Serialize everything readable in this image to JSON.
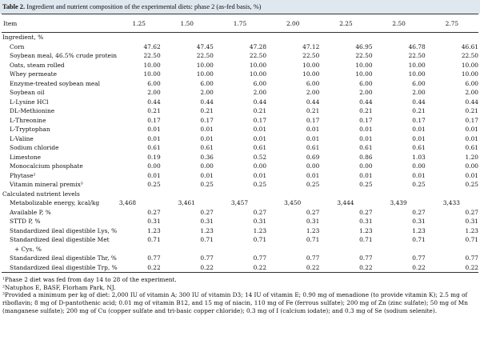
{
  "caption": {
    "label": "Table 2.",
    "text": "Ingredient and nutrient composition of the experimental diets: phase 2 (as-fed basis, %)"
  },
  "header": {
    "item": "Item",
    "levels": [
      "1.25",
      "1.50",
      "1.75",
      "2.00",
      "2.25",
      "2.50",
      "2.75"
    ]
  },
  "rows": [
    {
      "label": "Ingredient, %",
      "kind": "section",
      "values": []
    },
    {
      "label": "Corn",
      "kind": "ind",
      "values": [
        "47.62",
        "47.45",
        "47.28",
        "47.12",
        "46.95",
        "46.78",
        "46.61"
      ]
    },
    {
      "label": "Soybean meal, 46.5% crude protein",
      "kind": "ind",
      "values": [
        "22.50",
        "22.50",
        "22.50",
        "22.50",
        "22.50",
        "22.50",
        "22.50"
      ]
    },
    {
      "label": "Oats, steam rolled",
      "kind": "ind",
      "values": [
        "10.00",
        "10.00",
        "10.00",
        "10.00",
        "10.00",
        "10.00",
        "10.00"
      ]
    },
    {
      "label": "Whey permeate",
      "kind": "ind",
      "values": [
        "10.00",
        "10.00",
        "10.00",
        "10.00",
        "10.00",
        "10.00",
        "10.00"
      ]
    },
    {
      "label": "Enzyme-treated soybean meal",
      "kind": "ind",
      "values": [
        "6.00",
        "6.00",
        "6.00",
        "6.00",
        "6.00",
        "6.00",
        "6.00"
      ]
    },
    {
      "label": "Soybean oil",
      "kind": "ind",
      "values": [
        "2.00",
        "2.00",
        "2.00",
        "2.00",
        "2.00",
        "2.00",
        "2.00"
      ]
    },
    {
      "label": "L-Lysine HCl",
      "kind": "ind",
      "values": [
        "0.44",
        "0.44",
        "0.44",
        "0.44",
        "0.44",
        "0.44",
        "0.44"
      ]
    },
    {
      "label": "DL-Methionine",
      "kind": "ind",
      "values": [
        "0.21",
        "0.21",
        "0.21",
        "0.21",
        "0.21",
        "0.21",
        "0.21"
      ]
    },
    {
      "label": "L-Threonine",
      "kind": "ind",
      "values": [
        "0.17",
        "0.17",
        "0.17",
        "0.17",
        "0.17",
        "0.17",
        "0.17"
      ]
    },
    {
      "label": "L-Tryptophan",
      "kind": "ind",
      "values": [
        "0.01",
        "0.01",
        "0.01",
        "0.01",
        "0.01",
        "0.01",
        "0.01"
      ]
    },
    {
      "label": "L-Valine",
      "kind": "ind",
      "values": [
        "0.01",
        "0.01",
        "0.01",
        "0.01",
        "0.01",
        "0.01",
        "0.01"
      ]
    },
    {
      "label": "Sodium chloride",
      "kind": "ind",
      "values": [
        "0.61",
        "0.61",
        "0.61",
        "0.61",
        "0.61",
        "0.61",
        "0.61"
      ]
    },
    {
      "label": "Limestone",
      "kind": "ind",
      "values": [
        "0.19",
        "0.36",
        "0.52",
        "0.69",
        "0.86",
        "1.03",
        "1.20"
      ]
    },
    {
      "label": "Monocalcium phosphate",
      "kind": "ind",
      "values": [
        "0.00",
        "0.00",
        "0.00",
        "0.00",
        "0.00",
        "0.00",
        "0.00"
      ]
    },
    {
      "label": "Phytase²",
      "kind": "ind",
      "values": [
        "0.01",
        "0.01",
        "0.01",
        "0.01",
        "0.01",
        "0.01",
        "0.01"
      ]
    },
    {
      "label": "Vitamin mineral premix³",
      "kind": "ind",
      "values": [
        "0.25",
        "0.25",
        "0.25",
        "0.25",
        "0.25",
        "0.25",
        "0.25"
      ]
    },
    {
      "label": "Calculated nutrient levels",
      "kind": "section",
      "values": []
    },
    {
      "label": "Metabolizable energy, kcal/kg",
      "kind": "ind",
      "offset": "me",
      "values": [
        "3,468",
        "3,461",
        "3,457",
        "3,450",
        "3,444",
        "3,439",
        "3,433"
      ]
    },
    {
      "label": "Available P, %",
      "kind": "ind",
      "values": [
        "0.27",
        "0.27",
        "0.27",
        "0.27",
        "0.27",
        "0.27",
        "0.27"
      ]
    },
    {
      "label": "STTD P, %",
      "kind": "ind",
      "values": [
        "0.31",
        "0.31",
        "0.31",
        "0.31",
        "0.31",
        "0.31",
        "0.31"
      ]
    },
    {
      "label": "Standardized ileal digestible Lys, %",
      "kind": "ind",
      "values": [
        "1.23",
        "1.23",
        "1.23",
        "1.23",
        "1.23",
        "1.23",
        "1.23"
      ]
    },
    {
      "label": "Standardized ileal digestible Met",
      "kind": "ind",
      "values": [
        "0.71",
        "0.71",
        "0.71",
        "0.71",
        "0.71",
        "0.71",
        "0.71"
      ]
    },
    {
      "label": "+ Cys. %",
      "kind": "ind2",
      "values": []
    },
    {
      "label": "Standardized ileal digestible Thr, %",
      "kind": "ind",
      "values": [
        "0.77",
        "0.77",
        "0.77",
        "0.77",
        "0.77",
        "0.77",
        "0.77"
      ]
    },
    {
      "label": "Standardized ileal digestible Trp, %",
      "kind": "ind",
      "values": [
        "0.22",
        "0.22",
        "0.22",
        "0.22",
        "0.22",
        "0.22",
        "0.22"
      ]
    }
  ],
  "footnotes": [
    "¹Phase 2 diet was fed from day 14 to 28 of the experiment.",
    "²Natuphos E, BASF, Florham Park, NJ.",
    "³Provided a minimum per kg of diet: 2,000 IU of vitamin A; 300 IU of vitamin D3; 14 IU of vitamin E; 0.90 mg of menadione (to provide vitamin K); 2.5 mg of riboflavin; 8 mg of D-pantothenic acid; 0.01 mg of vitamin B12, and 15 mg of niacin, 110 mg of Fe (ferrous sulfate); 200 mg of Zn (zinc sulfate); 50 mg of Mn (manganese sulfate); 200 mg of Cu (copper sulfate and tri-basic copper chloride); 0.3 mg of I (calcium iodate); and 0.3 mg of Se (sodium selenite)."
  ]
}
